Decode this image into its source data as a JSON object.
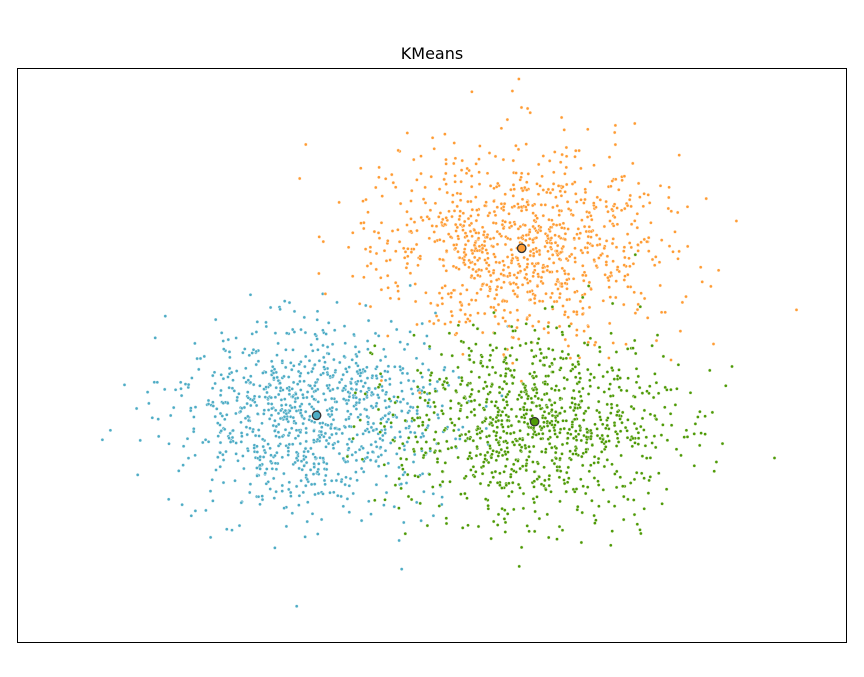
{
  "chart_data": {
    "type": "scatter",
    "title": "KMeans",
    "xlabel": "",
    "ylabel": "",
    "xlim": [
      -4.5,
      5.2
    ],
    "ylim": [
      -4.6,
      4.5
    ],
    "ticks_visible": false,
    "grid": false,
    "legend": "none",
    "point_count_per_cluster": 1000,
    "clusters": [
      {
        "color": "#4eacc5",
        "center": [
          -1.0,
          -1.0
        ],
        "spread": [
          0.82,
          0.72
        ],
        "points_per_cluster": 1000
      },
      {
        "color": "#ff9c34",
        "center": [
          1.4,
          1.65
        ],
        "spread": [
          0.85,
          0.78
        ],
        "points_per_cluster": 1000
      },
      {
        "color": "#4e9a06",
        "center": [
          1.55,
          -1.1
        ],
        "spread": [
          0.85,
          0.75
        ],
        "points_per_cluster": 1000
      }
    ],
    "centroids": [
      {
        "x": -1.0,
        "y": -1.0,
        "color": "#4eacc5"
      },
      {
        "x": 1.4,
        "y": 1.65,
        "color": "#ff9c34"
      },
      {
        "x": 1.55,
        "y": -1.1,
        "color": "#4e9a06"
      }
    ]
  }
}
